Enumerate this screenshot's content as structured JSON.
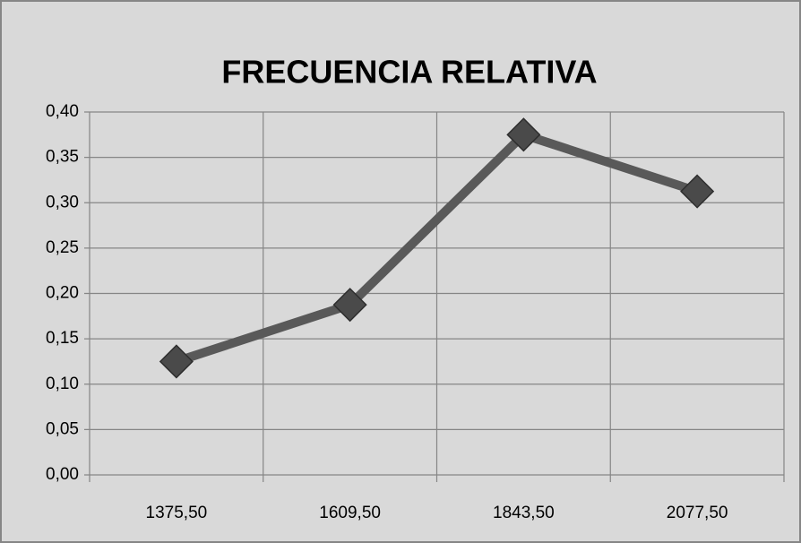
{
  "chart_data": {
    "type": "line",
    "title": "FRECUENCIA RELATIVA",
    "categories": [
      "1375,50",
      "1609,50",
      "1843,50",
      "2077,50"
    ],
    "series": [
      {
        "name": "Frecuencia relativa",
        "color": "#595959",
        "values": [
          0.125,
          0.1875,
          0.375,
          0.3125
        ]
      }
    ],
    "ylim": [
      0,
      0.4
    ],
    "yticks": [
      {
        "value": 0,
        "label": "0,00"
      },
      {
        "value": 0.05,
        "label": "0,05"
      },
      {
        "value": 0.1,
        "label": "0,10"
      },
      {
        "value": 0.15,
        "label": "0,15"
      },
      {
        "value": 0.2,
        "label": "0,20"
      },
      {
        "value": 0.25,
        "label": "0,25"
      },
      {
        "value": 0.3,
        "label": "0,30"
      },
      {
        "value": 0.35,
        "label": "0,35"
      },
      {
        "value": 0.4,
        "label": "0,40"
      }
    ],
    "grid": true
  }
}
